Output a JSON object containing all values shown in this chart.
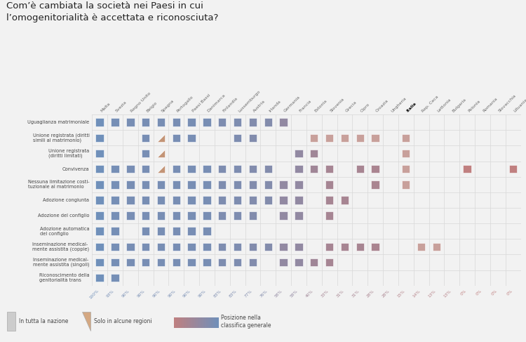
{
  "title_line1": "Com’è cambiata la società nei Paesi in cui",
  "title_line2": "l’omogenitorialità è accettata e riconosciuta?",
  "countries": [
    "Malta",
    "Svezia",
    "Regno Unito",
    "Belgio",
    "Spagna",
    "Portogallo",
    "Paesi Bassi",
    "Danimarca",
    "Finlandia",
    "Lussemburgo",
    "Austria",
    "Irlanda",
    "Germania",
    "Francia",
    "Estonia",
    "Slovenia",
    "Grecia",
    "Cipro",
    "Croazia",
    "Ungheria",
    "Italia",
    "Rep. Ceca",
    "Lettonia",
    "Bulgaria",
    "Polonia",
    "Romania",
    "Slovacchia",
    "Lituania"
  ],
  "percentages": [
    "100%",
    "93%",
    "90%",
    "90%",
    "90%",
    "90%",
    "90%",
    "90%",
    "83%",
    "83%",
    "77%",
    "76%",
    "58%",
    "58%",
    "40%",
    "33%",
    "31%",
    "31%",
    "28%",
    "28%",
    "15%",
    "14%",
    "13%",
    "13%",
    "0%",
    "0%",
    "0%",
    "0%"
  ],
  "rows": [
    "Uguaglianza matrimoniale",
    "Unione registrata (diritti\nsimili al matrimonio)",
    "Unione registrata\n(diritti limitati)",
    "Convivenza",
    "Nessuna limitazione costi-\ntuzionale al matrimonio",
    "Adozione congiunta",
    "Adozione del configlio",
    "Adozione automatica\ndel configlio",
    "Inseminazione medical-\nmente assistita (coppie)",
    "Inseminazione medical-\nmente assistita (singoli)",
    "Riconoscimento della\ngenitorialità trans"
  ],
  "pct_values": [
    100,
    93,
    90,
    90,
    90,
    90,
    90,
    90,
    83,
    83,
    77,
    76,
    58,
    58,
    40,
    33,
    31,
    31,
    28,
    28,
    15,
    14,
    13,
    13,
    0,
    0,
    0,
    0
  ],
  "matrix": [
    [
      1,
      1,
      1,
      1,
      1,
      1,
      1,
      1,
      1,
      1,
      1,
      1,
      1,
      0,
      0,
      0,
      0,
      0,
      0,
      0,
      0,
      0,
      0,
      0,
      0,
      0,
      0,
      0
    ],
    [
      1,
      0,
      0,
      1,
      3,
      1,
      1,
      0,
      0,
      1,
      1,
      0,
      0,
      0,
      2,
      2,
      2,
      2,
      2,
      0,
      2,
      0,
      0,
      0,
      0,
      0,
      0,
      0
    ],
    [
      1,
      0,
      0,
      1,
      3,
      0,
      0,
      0,
      0,
      0,
      0,
      0,
      0,
      1,
      1,
      0,
      0,
      0,
      0,
      0,
      2,
      0,
      0,
      0,
      0,
      0,
      0,
      0
    ],
    [
      1,
      1,
      1,
      1,
      3,
      1,
      1,
      1,
      1,
      1,
      1,
      1,
      0,
      1,
      1,
      1,
      0,
      1,
      1,
      0,
      2,
      0,
      0,
      0,
      1,
      0,
      0,
      1
    ],
    [
      1,
      1,
      1,
      1,
      1,
      1,
      1,
      1,
      1,
      1,
      1,
      1,
      1,
      1,
      0,
      1,
      0,
      0,
      1,
      0,
      2,
      0,
      0,
      0,
      0,
      0,
      0,
      0
    ],
    [
      1,
      1,
      1,
      1,
      1,
      1,
      1,
      1,
      1,
      1,
      1,
      1,
      1,
      1,
      0,
      1,
      1,
      0,
      0,
      0,
      0,
      0,
      0,
      0,
      0,
      0,
      0,
      0
    ],
    [
      1,
      1,
      1,
      1,
      1,
      1,
      1,
      1,
      1,
      1,
      1,
      0,
      1,
      1,
      0,
      1,
      0,
      0,
      0,
      0,
      0,
      0,
      0,
      0,
      0,
      0,
      0,
      0
    ],
    [
      1,
      1,
      0,
      1,
      1,
      1,
      1,
      1,
      0,
      0,
      0,
      0,
      0,
      0,
      0,
      0,
      0,
      0,
      0,
      0,
      0,
      0,
      0,
      0,
      0,
      0,
      0,
      0
    ],
    [
      1,
      1,
      1,
      1,
      1,
      1,
      1,
      1,
      1,
      1,
      1,
      1,
      1,
      1,
      0,
      1,
      1,
      1,
      1,
      0,
      0,
      2,
      2,
      0,
      0,
      0,
      0,
      0
    ],
    [
      1,
      1,
      1,
      1,
      1,
      1,
      1,
      1,
      1,
      1,
      1,
      0,
      1,
      1,
      1,
      1,
      0,
      0,
      0,
      0,
      0,
      0,
      0,
      0,
      0,
      0,
      0,
      0
    ],
    [
      1,
      1,
      0,
      0,
      0,
      0,
      0,
      0,
      0,
      0,
      0,
      0,
      0,
      0,
      0,
      0,
      0,
      0,
      0,
      0,
      0,
      0,
      0,
      0,
      0,
      0,
      0,
      0
    ]
  ],
  "bg_color": "#f2f2f2",
  "grid_color": "#d8d8d8",
  "white": "#ffffff"
}
